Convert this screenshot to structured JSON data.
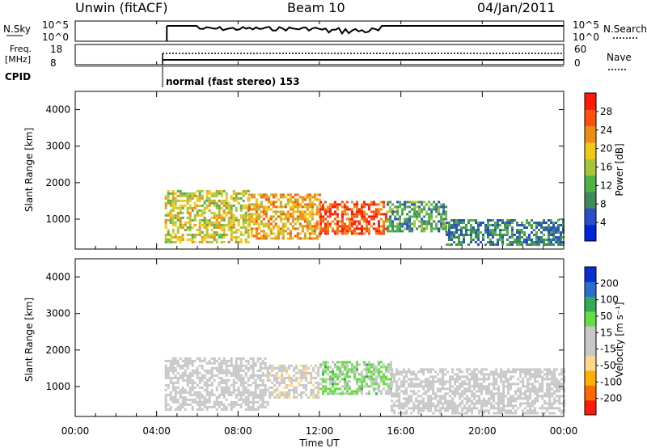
{
  "header": {
    "site": "Unwin (fitACF)",
    "beam": "Beam 10",
    "date": "04/Jan/2011"
  },
  "status_panels": {
    "nsky_label": "N.Sky",
    "nsky_ticks": [
      "10^5",
      "10^0"
    ],
    "nsearch_label": "N.Search",
    "nsearch_ticks": [
      "10^5",
      "10^0"
    ],
    "freq_label_line1": "Freq.",
    "freq_label_line2": "[MHz]",
    "freq_ticks": [
      "18",
      "8"
    ],
    "nave_label": "Nave",
    "nave_ticks": [
      "60",
      "0"
    ],
    "cpid_label": "CPID",
    "cpid_mode": "normal (fast stereo) 153"
  },
  "colors": {
    "power_scale": [
      "#0026d9",
      "#2a4fc8",
      "#3f8a5a",
      "#4fb247",
      "#a8c43a",
      "#f0c818",
      "#f08c14",
      "#ff5010",
      "#ff1a0a"
    ],
    "velocity_scale": [
      "#ff1a0a",
      "#ff6a00",
      "#ffb000",
      "#ffd88a",
      "#c8c8c8",
      "#c8c8c8",
      "#66dd44",
      "#33aa55",
      "#2a6ecf",
      "#0a2fd0"
    ],
    "scatter_gray": "#c8c8c8"
  },
  "chart_data": [
    {
      "type": "heatmap",
      "title": "",
      "xlabel": "",
      "ylabel": "Slant Range [km]",
      "xlim": [
        "00:00",
        "24:00"
      ],
      "ylim": [
        180,
        4500
      ],
      "yticks": [
        "1000",
        "2000",
        "3000",
        "4000"
      ],
      "colorbar_label": "Power [dB]",
      "colorbar_ticks": [
        "4",
        "8",
        "12",
        "16",
        "20",
        "24",
        "28"
      ],
      "colorbar_range": [
        0,
        32
      ],
      "data_start": "04:30",
      "regions": [
        {
          "t_start": 4.4,
          "t_end": 8.5,
          "r_start": 400,
          "r_end": 1800,
          "level": 18
        },
        {
          "t_start": 8.5,
          "t_end": 12.0,
          "r_start": 500,
          "r_end": 1700,
          "level": 22
        },
        {
          "t_start": 12.0,
          "t_end": 15.3,
          "r_start": 600,
          "r_end": 1500,
          "level": 28
        },
        {
          "t_start": 15.3,
          "t_end": 18.2,
          "r_start": 700,
          "r_end": 1500,
          "level": 10
        },
        {
          "t_start": 18.2,
          "t_end": 24.0,
          "r_start": 300,
          "r_end": 1000,
          "level": 8
        }
      ]
    },
    {
      "type": "heatmap",
      "title": "",
      "xlabel": "Time UT",
      "ylabel": "Slant Range [km]",
      "xlim": [
        "00:00",
        "24:00"
      ],
      "ylim": [
        180,
        4500
      ],
      "xticks": [
        "00:00",
        "04:00",
        "08:00",
        "12:00",
        "16:00",
        "20:00",
        "00:00"
      ],
      "yticks": [
        "1000",
        "2000",
        "3000",
        "4000"
      ],
      "colorbar_label": "Velocity [m s⁻¹]",
      "colorbar_ticks": [
        "200",
        "100",
        "50",
        "15",
        "-15",
        "-50",
        "-100",
        "-200"
      ],
      "colorbar_range": [
        -250,
        250
      ],
      "data_start": "04:30",
      "regions": [
        {
          "t_start": 4.4,
          "t_end": 9.5,
          "r_start": 400,
          "r_end": 1800,
          "level": 0
        },
        {
          "t_start": 9.5,
          "t_end": 12.0,
          "r_start": 700,
          "r_end": 1600,
          "level": -30
        },
        {
          "t_start": 12.0,
          "t_end": 15.5,
          "r_start": 800,
          "r_end": 1700,
          "level": 60
        },
        {
          "t_start": 15.5,
          "t_end": 24.0,
          "r_start": 300,
          "r_end": 1500,
          "level": 0
        }
      ]
    }
  ]
}
